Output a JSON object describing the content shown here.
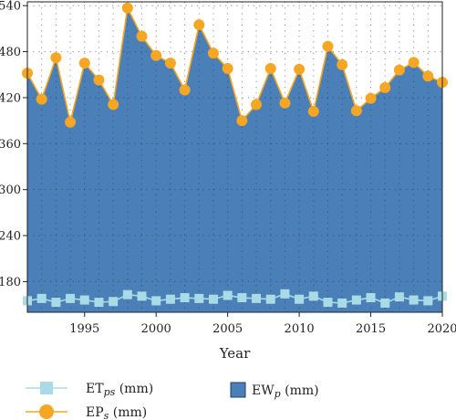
{
  "chart_data": {
    "type": "area",
    "xlabel": "Year",
    "ylabel": "",
    "xlim": [
      1991,
      2020
    ],
    "ylim": [
      140,
      545
    ],
    "x_ticks": [
      1995,
      2000,
      2005,
      2010,
      2015,
      2020
    ],
    "y_ticks": [
      180,
      240,
      300,
      360,
      420,
      480,
      540
    ],
    "grid": "dotted",
    "legend_position": "bottom",
    "x": [
      1991,
      1992,
      1993,
      1994,
      1995,
      1996,
      1997,
      1998,
      1999,
      2000,
      2001,
      2002,
      2003,
      2004,
      2005,
      2006,
      2007,
      2008,
      2009,
      2010,
      2011,
      2012,
      2013,
      2014,
      2015,
      2016,
      2017,
      2018,
      2019,
      2020
    ],
    "series": [
      {
        "name": "EW",
        "name_sub": "p",
        "name_unit": "(mm)",
        "role": "area",
        "color": "#4a7fb8",
        "values": [
          452,
          418,
          472,
          388,
          465,
          443,
          411,
          537,
          500,
          475,
          465,
          430,
          515,
          478,
          458,
          390,
          411,
          458,
          413,
          457,
          402,
          487,
          463,
          403,
          419,
          433,
          456,
          466,
          448,
          440
        ]
      },
      {
        "name": "EP",
        "name_sub": "s",
        "name_unit": "(mm)",
        "role": "line-circle",
        "color": "#f5a623",
        "values": [
          452,
          418,
          472,
          388,
          465,
          443,
          411,
          537,
          500,
          475,
          465,
          430,
          515,
          478,
          458,
          390,
          411,
          458,
          413,
          457,
          402,
          487,
          463,
          403,
          419,
          433,
          456,
          466,
          448,
          440
        ]
      },
      {
        "name": "ET",
        "name_sub": "ps",
        "name_unit": "(mm)",
        "role": "line-square",
        "color": "#a9dbe6",
        "values": [
          155,
          158,
          153,
          158,
          156,
          153,
          154,
          163,
          161,
          155,
          157,
          159,
          158,
          157,
          162,
          159,
          158,
          157,
          164,
          157,
          161,
          153,
          152,
          156,
          159,
          152,
          160,
          156,
          155,
          161
        ]
      }
    ]
  }
}
